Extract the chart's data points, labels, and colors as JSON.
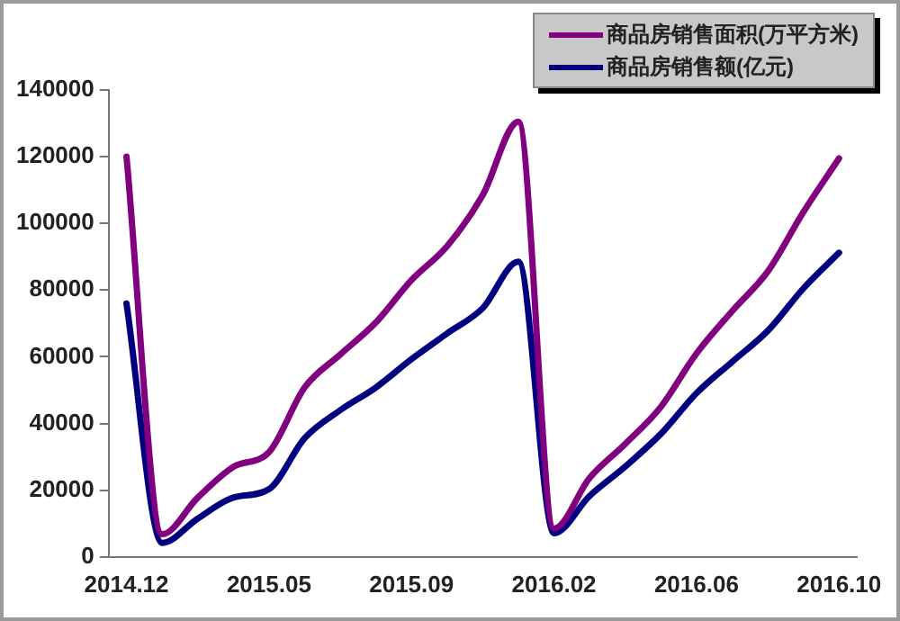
{
  "chart_data": {
    "type": "line",
    "categories": [
      "2014.12",
      null,
      null,
      null,
      "2015.05",
      null,
      null,
      null,
      "2015.09",
      null,
      null,
      null,
      "2016.02",
      null,
      null,
      null,
      "2016.06",
      null,
      null,
      null,
      "2016.10"
    ],
    "series": [
      {
        "name": "商品房销售面积(万平方米)",
        "color": "#800080",
        "values": [
          120000,
          6800,
          17800,
          27000,
          31400,
          50800,
          60700,
          70300,
          83000,
          93200,
          108500,
          130500,
          8500,
          23700,
          33900,
          45000,
          61000,
          73700,
          85600,
          103400,
          119500
        ]
      },
      {
        "name": "商品房销售额(亿元)",
        "color": "#000080",
        "values": [
          76000,
          4200,
          11500,
          17800,
          20300,
          35600,
          44000,
          50800,
          59300,
          67000,
          74600,
          88500,
          7100,
          18300,
          27100,
          36900,
          49100,
          58500,
          67800,
          80500,
          91200
        ]
      }
    ],
    "ylim": [
      0,
      140000
    ],
    "yticks": [
      0,
      20000,
      40000,
      60000,
      80000,
      100000,
      120000,
      140000
    ],
    "grid": false,
    "legend": "top right",
    "marker": "none",
    "line_style": "solid"
  }
}
